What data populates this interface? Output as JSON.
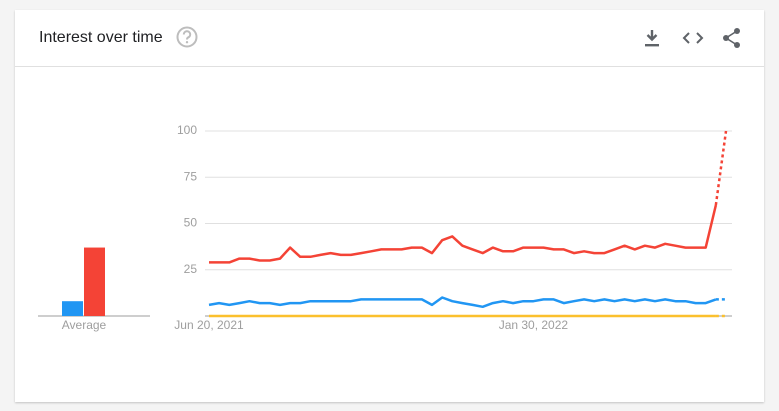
{
  "header": {
    "title": "Interest over time"
  },
  "chart_data": [
    {
      "type": "bar",
      "categories": [
        "Average"
      ],
      "ylim": [
        0,
        100
      ],
      "series": [
        {
          "color": "#2196f3",
          "values": [
            8
          ]
        },
        {
          "color": "#f44336",
          "values": [
            37
          ]
        }
      ]
    },
    {
      "type": "line",
      "categories": [
        "Jun 20, 2021",
        null,
        null,
        null,
        null,
        null,
        null,
        null,
        null,
        null,
        null,
        null,
        null,
        null,
        null,
        null,
        null,
        null,
        null,
        null,
        null,
        null,
        null,
        null,
        null,
        null,
        null,
        null,
        null,
        null,
        null,
        null,
        "Jan 30, 2022",
        null,
        null,
        null,
        null,
        null,
        null,
        null,
        null,
        null,
        null,
        null,
        null,
        null,
        null,
        null,
        null,
        null,
        null,
        null
      ],
      "ylim": [
        0,
        100
      ],
      "yticks": [
        25,
        50,
        75,
        100
      ],
      "grid": true,
      "partial_last_point": true,
      "series": [
        {
          "color": "#2196f3",
          "values": [
            6,
            7,
            6,
            7,
            8,
            7,
            7,
            6,
            7,
            7,
            8,
            8,
            8,
            8,
            8,
            9,
            9,
            9,
            9,
            9,
            9,
            9,
            6,
            10,
            8,
            7,
            6,
            5,
            7,
            8,
            7,
            8,
            8,
            9,
            9,
            7,
            8,
            9,
            8,
            9,
            8,
            9,
            8,
            9,
            8,
            9,
            8,
            8,
            7,
            7,
            9,
            9
          ]
        },
        {
          "color": "#f44336",
          "values": [
            29,
            29,
            29,
            31,
            31,
            30,
            30,
            31,
            37,
            32,
            32,
            33,
            34,
            33,
            33,
            34,
            35,
            36,
            36,
            36,
            37,
            37,
            34,
            41,
            43,
            38,
            36,
            34,
            37,
            35,
            35,
            37,
            37,
            37,
            36,
            36,
            34,
            35,
            34,
            34,
            36,
            38,
            36,
            38,
            37,
            39,
            38,
            37,
            37,
            37,
            60,
            100
          ]
        },
        {
          "color": "#fbc02d",
          "values": [
            0,
            0,
            0,
            0,
            0,
            0,
            0,
            0,
            0,
            0,
            0,
            0,
            0,
            0,
            0,
            0,
            0,
            0,
            0,
            0,
            0,
            0,
            0,
            0,
            0,
            0,
            0,
            0,
            0,
            0,
            0,
            0,
            0,
            0,
            0,
            0,
            0,
            0,
            0,
            0,
            0,
            0,
            0,
            0,
            0,
            0,
            0,
            0,
            0,
            0,
            0,
            0
          ]
        }
      ]
    }
  ]
}
